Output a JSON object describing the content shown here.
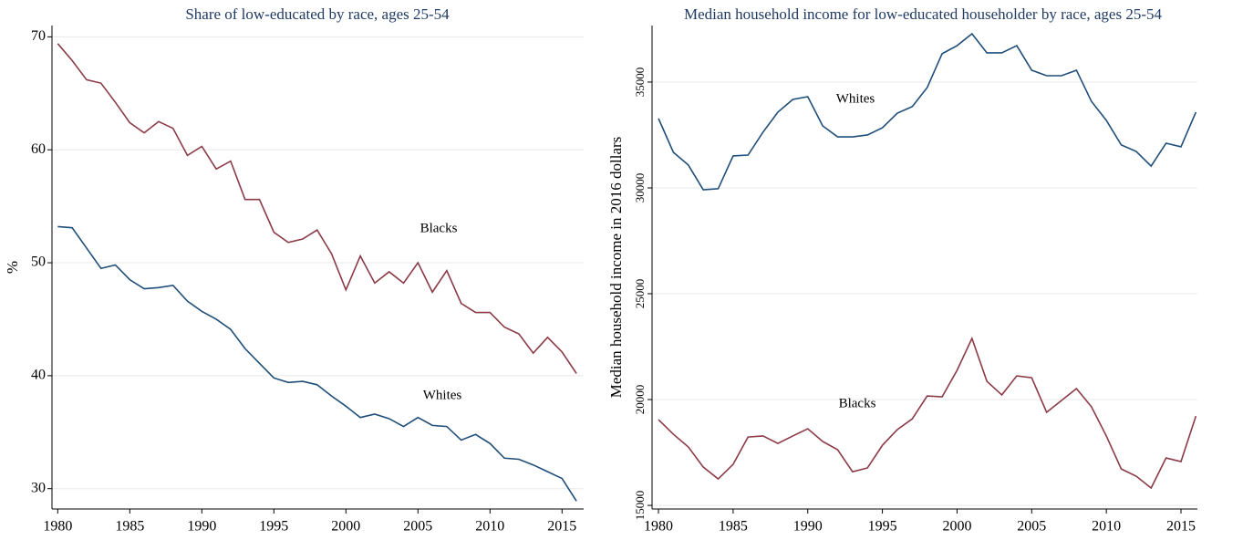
{
  "chart_data": [
    {
      "type": "line",
      "title": "Share of low-educated by race, ages 25-54",
      "y_label": "%",
      "x": [
        1980,
        1981,
        1982,
        1983,
        1984,
        1985,
        1986,
        1987,
        1988,
        1989,
        1990,
        1991,
        1992,
        1993,
        1994,
        1995,
        1996,
        1997,
        1998,
        1999,
        2000,
        2001,
        2002,
        2003,
        2004,
        2005,
        2006,
        2007,
        2008,
        2009,
        2010,
        2011,
        2012,
        2013,
        2014,
        2015,
        2016
      ],
      "series": [
        {
          "name": "Blacks",
          "color": "#8b3a47",
          "values": [
            69.4,
            67.9,
            66.2,
            65.9,
            64.2,
            62.4,
            61.5,
            62.5,
            61.9,
            59.5,
            60.3,
            58.3,
            59.0,
            55.6,
            55.6,
            52.7,
            51.8,
            52.1,
            52.9,
            50.8,
            47.6,
            50.6,
            48.2,
            49.2,
            48.2,
            50.0,
            47.4,
            49.3,
            46.4,
            45.6,
            45.6,
            44.3,
            43.7,
            42.0,
            43.4,
            42.1,
            40.2
          ]
        },
        {
          "name": "Whites",
          "color": "#1f4e79",
          "values": [
            53.2,
            53.1,
            51.3,
            49.5,
            49.8,
            48.5,
            47.7,
            47.8,
            48.0,
            46.6,
            45.7,
            45.0,
            44.1,
            42.4,
            41.1,
            39.8,
            39.4,
            39.5,
            39.2,
            38.2,
            37.3,
            36.3,
            36.6,
            36.2,
            35.5,
            36.3,
            35.6,
            35.5,
            34.3,
            34.8,
            34.0,
            32.7,
            32.6,
            32.1,
            31.5,
            30.9,
            28.9
          ]
        }
      ],
      "xlim": [
        1979.6,
        2016.5
      ],
      "xticks": [
        1980,
        1985,
        1990,
        1995,
        2000,
        2005,
        2010,
        2015
      ],
      "ylim": [
        28.2,
        71.0
      ],
      "yticks": [
        30,
        40,
        50,
        60,
        70
      ],
      "grid": true
    },
    {
      "type": "line",
      "title": "Median household income for low-educated householder by race, ages 25-54",
      "y_label": "Median household income in 2016 dollars",
      "x": [
        1980,
        1981,
        1982,
        1983,
        1984,
        1985,
        1986,
        1987,
        1988,
        1989,
        1990,
        1991,
        1992,
        1993,
        1994,
        1995,
        1996,
        1997,
        1998,
        1999,
        2000,
        2001,
        2002,
        2003,
        2004,
        2005,
        2006,
        2007,
        2008,
        2009,
        2010,
        2011,
        2012,
        2013,
        2014,
        2015,
        2016
      ],
      "series": [
        {
          "name": "Blacks",
          "color": "#8b3a47",
          "values": [
            19050,
            18360,
            17760,
            16810,
            16250,
            16940,
            18230,
            18280,
            17930,
            18280,
            18620,
            18020,
            17630,
            16590,
            16770,
            17840,
            18580,
            19090,
            20170,
            20130,
            21380,
            22890,
            20860,
            20220,
            21120,
            21030,
            19400,
            19960,
            20520,
            19660,
            18280,
            16720,
            16380,
            15820,
            17240,
            17070,
            19220
          ]
        },
        {
          "name": "Whites",
          "color": "#1f4e79",
          "values": [
            33280,
            31680,
            31080,
            29910,
            29960,
            31510,
            31550,
            32630,
            33580,
            34180,
            34310,
            32930,
            32410,
            32410,
            32500,
            32840,
            33530,
            33840,
            34740,
            36340,
            36720,
            37280,
            36380,
            36380,
            36720,
            35560,
            35300,
            35300,
            35560,
            34090,
            33190,
            32030,
            31720,
            31030,
            32110,
            31940,
            33580
          ]
        }
      ],
      "xlim": [
        1979.57,
        2016.1
      ],
      "xticks": [
        1980,
        1985,
        1990,
        1995,
        2000,
        2005,
        2010,
        2015
      ],
      "ylim": [
        14830,
        37670
      ],
      "yticks": [
        15000,
        20000,
        25000,
        30000,
        35000
      ],
      "grid": true
    }
  ]
}
